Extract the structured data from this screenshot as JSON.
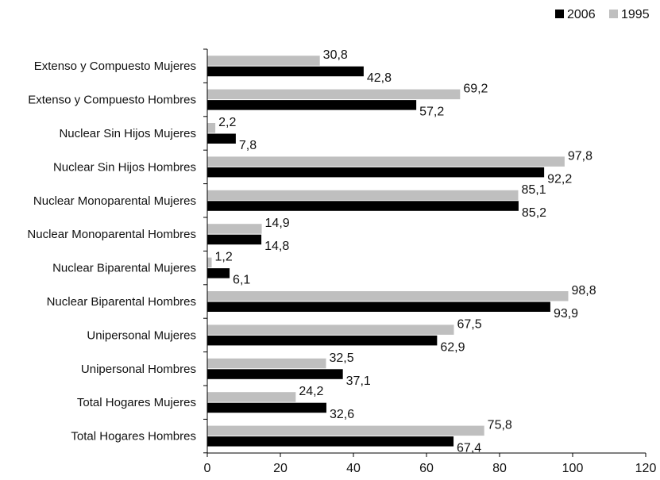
{
  "chart_data": {
    "type": "bar",
    "orientation": "horizontal",
    "categories": [
      "Total Hogares Hombres",
      "Total Hogares Mujeres",
      "Unipersonal Hombres",
      "Unipersonal Mujeres",
      "Nuclear Biparental Hombres",
      "Nuclear Biparental Mujeres",
      "Nuclear Monoparental Hombres",
      "Nuclear Monoparental Mujeres",
      "Nuclear Sin Hijos Hombres",
      "Nuclear Sin Hijos Mujeres",
      "Extenso y Compuesto Hombres",
      "Extenso y Compuesto Mujeres"
    ],
    "series": [
      {
        "name": "2006",
        "color": "#000000",
        "values": [
          67.4,
          32.6,
          37.1,
          62.9,
          93.9,
          6.1,
          14.8,
          85.2,
          92.2,
          7.8,
          57.2,
          42.8
        ],
        "labels": [
          "67,4",
          "32,6",
          "37,1",
          "62,9",
          "93,9",
          "6,1",
          "14,8",
          "85,2",
          "92,2",
          "7,8",
          "57,2",
          "42,8"
        ]
      },
      {
        "name": "1995",
        "color": "#bfbfbf",
        "values": [
          75.8,
          24.2,
          32.5,
          67.5,
          98.8,
          1.2,
          14.9,
          85.1,
          97.8,
          2.2,
          69.2,
          30.8
        ],
        "labels": [
          "75,8",
          "24,2",
          "32,5",
          "67,5",
          "98,8",
          "1,2",
          "14,9",
          "85,1",
          "97,8",
          "2,2",
          "69,2",
          "30,8"
        ]
      }
    ],
    "x_ticks": [
      "0",
      "20",
      "40",
      "60",
      "80",
      "100",
      "120"
    ],
    "xlim": [
      0,
      120
    ],
    "title": "",
    "xlabel": "",
    "ylabel": "",
    "grid": false,
    "legend_position": "top-right",
    "legend_order": [
      "2006",
      "1995"
    ]
  }
}
